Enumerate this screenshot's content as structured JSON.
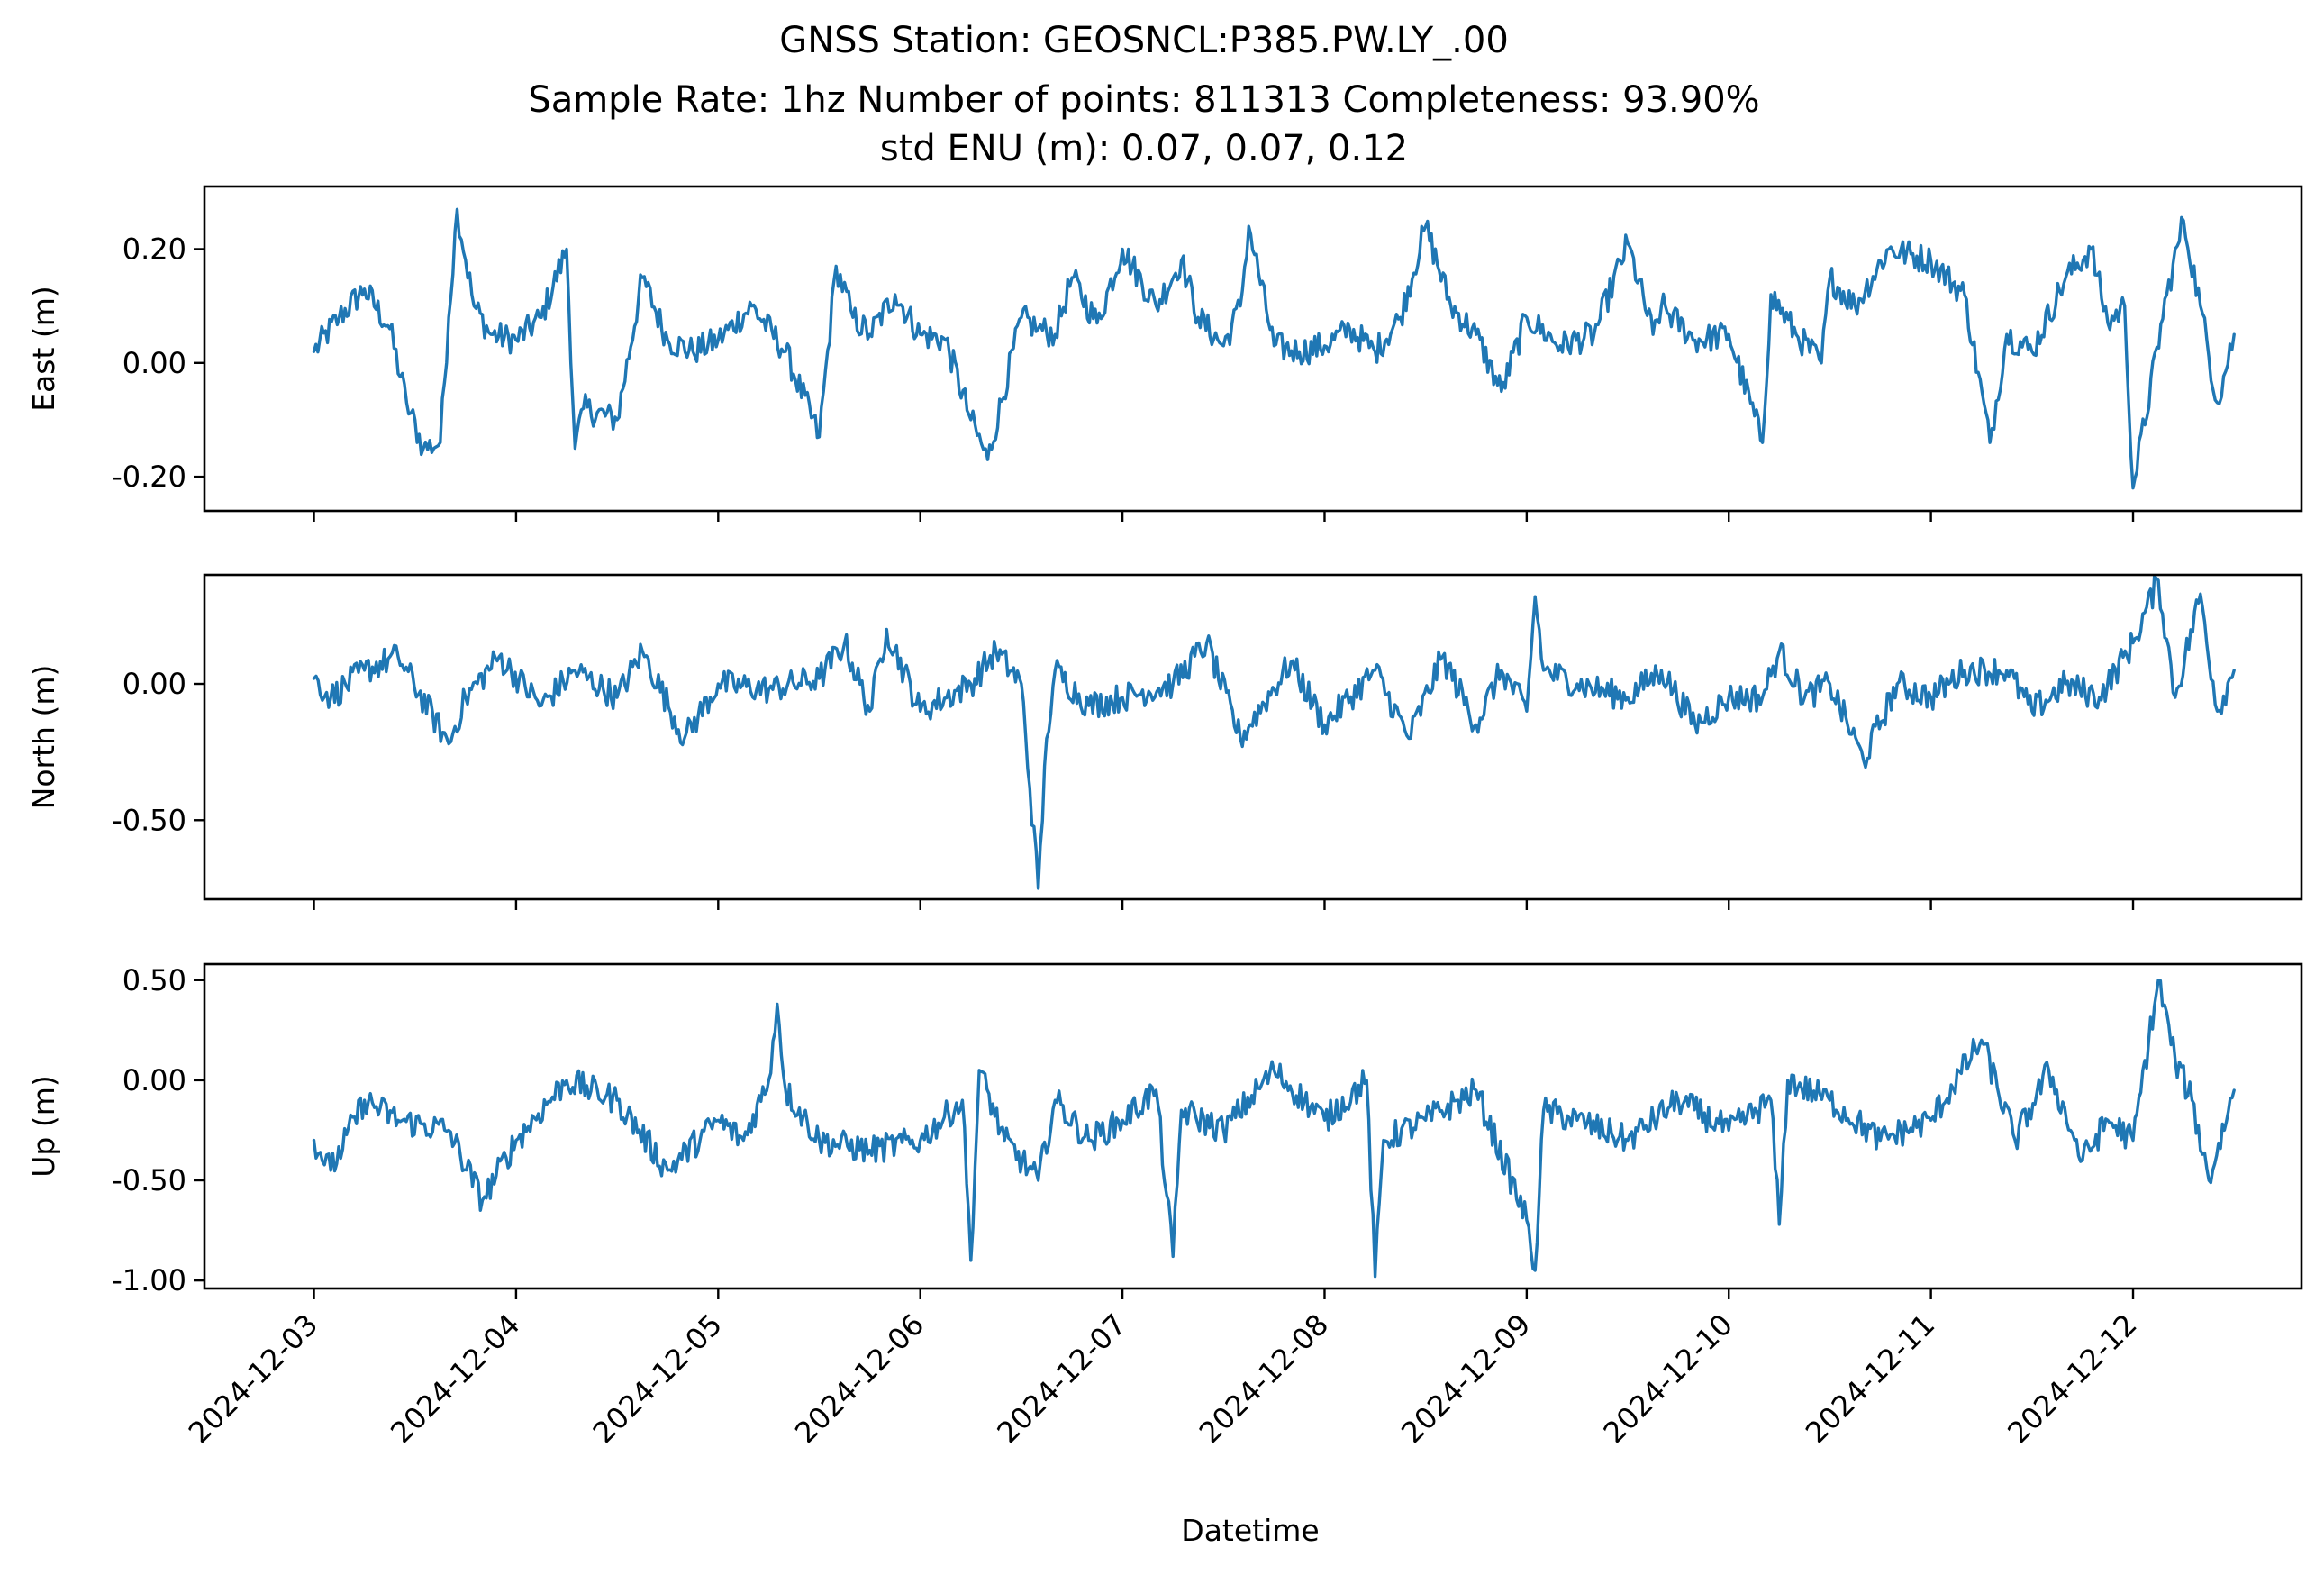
{
  "figure": {
    "title_lines": [
      "GNSS Station: GEOSNCL:P385.PW.LY_.00",
      "Sample Rate: 1hz   Number of points: 811313    Completeness:  93.90%",
      "std ENU (m):  0.07, 0.07, 0.12"
    ],
    "xlabel": "Datetime",
    "line_color": "#1f77b4"
  },
  "chart_data": [
    {
      "type": "line",
      "name": "east",
      "ylabel": "East (m)",
      "xlim": [
        "2024-12-02T11:00",
        "2024-12-12T20:00"
      ],
      "ylim": [
        -0.26,
        0.31
      ],
      "yticks": [
        0.2,
        0.0,
        -0.2
      ],
      "ytick_labels": [
        "0.20",
        "0.00",
        "-0.20"
      ],
      "x_tick_labels": [],
      "grid": false,
      "x": [
        "2024-12-03T00:00",
        "2024-12-03T03:00",
        "2024-12-03T06:00",
        "2024-12-03T09:00",
        "2024-12-03T11:00",
        "2024-12-03T13:00",
        "2024-12-03T15:00",
        "2024-12-03T16:00",
        "2024-12-03T17:00",
        "2024-12-03T19:00",
        "2024-12-03T21:00",
        "2024-12-04T00:00",
        "2024-12-04T03:00",
        "2024-12-04T06:00",
        "2024-12-04T07:00",
        "2024-12-04T08:00",
        "2024-12-04T12:00",
        "2024-12-04T15:00",
        "2024-12-04T18:00",
        "2024-12-04T21:00",
        "2024-12-05T00:00",
        "2024-12-05T04:00",
        "2024-12-05T08:00",
        "2024-12-05T12:00",
        "2024-12-05T14:00",
        "2024-12-05T16:00",
        "2024-12-05T18:00",
        "2024-12-05T21:00",
        "2024-12-06T00:00",
        "2024-12-06T03:00",
        "2024-12-06T06:00",
        "2024-12-06T08:00",
        "2024-12-06T12:00",
        "2024-12-06T14:00",
        "2024-12-06T16:00",
        "2024-12-06T18:00",
        "2024-12-06T21:00",
        "2024-12-07T00:00",
        "2024-12-07T04:00",
        "2024-12-07T07:00",
        "2024-12-07T09:00",
        "2024-12-07T12:00",
        "2024-12-07T14:00",
        "2024-12-07T15:00",
        "2024-12-07T18:00",
        "2024-12-07T21:00",
        "2024-12-08T00:00",
        "2024-12-08T03:00",
        "2024-12-08T06:00",
        "2024-12-08T09:00",
        "2024-12-08T12:00",
        "2024-12-08T15:00",
        "2024-12-08T18:00",
        "2024-12-08T21:00",
        "2024-12-09T00:00",
        "2024-12-09T04:00",
        "2024-12-09T08:00",
        "2024-12-09T12:00",
        "2024-12-09T15:00",
        "2024-12-09T16:00",
        "2024-12-09T20:00",
        "2024-12-10T00:00",
        "2024-12-10T04:00",
        "2024-12-10T05:00",
        "2024-12-10T08:00",
        "2024-12-10T11:00",
        "2024-12-10T12:00",
        "2024-12-10T15:00",
        "2024-12-10T19:00",
        "2024-12-11T00:00",
        "2024-12-11T04:00",
        "2024-12-11T07:00",
        "2024-12-11T09:00",
        "2024-12-11T12:00",
        "2024-12-11T16:00",
        "2024-12-11T19:00",
        "2024-12-11T21:00",
        "2024-12-11T23:00",
        "2024-12-12T00:00",
        "2024-12-12T04:00",
        "2024-12-12T06:00",
        "2024-12-12T08:00",
        "2024-12-12T10:00",
        "2024-12-12T12:00"
      ],
      "y": [
        0.02,
        0.08,
        0.13,
        0.06,
        -0.07,
        -0.15,
        -0.14,
        0.08,
        0.27,
        0.1,
        0.05,
        0.04,
        0.08,
        0.2,
        -0.15,
        -0.08,
        -0.1,
        0.15,
        0.04,
        0.02,
        0.04,
        0.1,
        0.02,
        -0.13,
        0.17,
        0.08,
        0.05,
        0.12,
        0.05,
        0.04,
        -0.1,
        -0.17,
        0.08,
        0.06,
        0.05,
        0.15,
        0.07,
        0.2,
        0.1,
        0.18,
        0.08,
        0.03,
        0.1,
        0.24,
        0.03,
        0.02,
        0.03,
        0.06,
        0.02,
        0.08,
        0.24,
        0.1,
        0.05,
        -0.05,
        0.08,
        0.03,
        0.05,
        0.21,
        0.05,
        0.1,
        0.04,
        0.05,
        -0.14,
        0.12,
        0.05,
        0.0,
        0.15,
        0.1,
        0.2,
        0.18,
        0.12,
        -0.14,
        0.05,
        0.02,
        0.15,
        0.2,
        0.07,
        0.1,
        -0.22,
        0.12,
        0.25,
        0.1,
        -0.07,
        0.05
      ]
    },
    {
      "type": "line",
      "name": "north",
      "ylabel": "North (m)",
      "xlim": [
        "2024-12-02T11:00",
        "2024-12-12T20:00"
      ],
      "ylim": [
        -0.79,
        0.4
      ],
      "yticks": [
        0.0,
        -0.5
      ],
      "ytick_labels": [
        "0.00",
        "-0.50"
      ],
      "x_tick_labels": [],
      "grid": false,
      "x": [
        "2024-12-03T00:00",
        "2024-12-03T02:00",
        "2024-12-03T06:00",
        "2024-12-03T10:00",
        "2024-12-03T16:00",
        "2024-12-03T18:00",
        "2024-12-03T22:00",
        "2024-12-04T03:00",
        "2024-12-04T07:00",
        "2024-12-04T12:00",
        "2024-12-04T15:00",
        "2024-12-04T20:00",
        "2024-12-05T00:00",
        "2024-12-05T06:00",
        "2024-12-05T12:00",
        "2024-12-05T15:00",
        "2024-12-05T18:00",
        "2024-12-05T20:00",
        "2024-12-06T00:00",
        "2024-12-06T06:00",
        "2024-12-06T09:00",
        "2024-12-06T12:00",
        "2024-12-06T14:00",
        "2024-12-06T15:00",
        "2024-12-06T16:00",
        "2024-12-06T20:00",
        "2024-12-07T00:00",
        "2024-12-07T06:00",
        "2024-12-07T10:00",
        "2024-12-07T14:00",
        "2024-12-07T20:00",
        "2024-12-08T00:00",
        "2024-12-08T06:00",
        "2024-12-08T10:00",
        "2024-12-08T14:00",
        "2024-12-08T18:00",
        "2024-12-08T21:00",
        "2024-12-09T00:00",
        "2024-12-09T01:00",
        "2024-12-09T02:00",
        "2024-12-09T06:00",
        "2024-12-09T12:00",
        "2024-12-09T16:00",
        "2024-12-09T20:00",
        "2024-12-10T00:00",
        "2024-12-10T04:00",
        "2024-12-10T06:00",
        "2024-12-10T09:00",
        "2024-12-10T12:00",
        "2024-12-10T16:00",
        "2024-12-10T20:00",
        "2024-12-11T00:00",
        "2024-12-11T04:00",
        "2024-12-11T09:00",
        "2024-12-11T12:00",
        "2024-12-11T16:00",
        "2024-12-11T20:00",
        "2024-12-12T00:00",
        "2024-12-12T03:00",
        "2024-12-12T05:00",
        "2024-12-12T08:00",
        "2024-12-12T10:00",
        "2024-12-12T12:00"
      ],
      "y": [
        0.02,
        -0.05,
        0.05,
        0.1,
        -0.22,
        -0.05,
        0.1,
        -0.08,
        0.05,
        -0.05,
        0.12,
        -0.2,
        0.0,
        -0.02,
        0.02,
        0.15,
        -0.1,
        0.2,
        -0.1,
        0.0,
        0.12,
        0.0,
        -0.75,
        -0.2,
        0.05,
        -0.08,
        -0.05,
        0.0,
        0.15,
        -0.2,
        0.08,
        -0.15,
        0.05,
        -0.2,
        0.1,
        -0.15,
        0.05,
        -0.1,
        0.32,
        0.05,
        0.0,
        -0.05,
        0.05,
        -0.15,
        -0.05,
        -0.05,
        0.12,
        -0.05,
        0.0,
        -0.28,
        0.0,
        -0.05,
        0.05,
        0.05,
        -0.1,
        0.0,
        -0.05,
        0.15,
        0.38,
        -0.05,
        0.33,
        -0.1,
        0.05
      ]
    },
    {
      "type": "line",
      "name": "up",
      "ylabel": "Up (m)",
      "xlim": [
        "2024-12-02T11:00",
        "2024-12-12T20:00"
      ],
      "ylim": [
        -1.04,
        0.58
      ],
      "yticks": [
        0.5,
        0.0,
        -0.5,
        -1.0
      ],
      "ytick_labels": [
        "0.50",
        "0.00",
        "-0.50",
        "-1.00"
      ],
      "x_tick_labels": [
        "2024-12-03",
        "2024-12-04",
        "2024-12-05",
        "2024-12-06",
        "2024-12-07",
        "2024-12-08",
        "2024-12-09",
        "2024-12-10",
        "2024-12-11",
        "2024-12-12"
      ],
      "grid": false,
      "x": [
        "2024-12-03T00:00",
        "2024-12-03T02:00",
        "2024-12-03T06:00",
        "2024-12-03T10:00",
        "2024-12-03T16:00",
        "2024-12-03T20:00",
        "2024-12-04T00:00",
        "2024-12-04T06:00",
        "2024-12-04T12:00",
        "2024-12-04T18:00",
        "2024-12-05T00:00",
        "2024-12-05T03:00",
        "2024-12-05T06:00",
        "2024-12-05T07:00",
        "2024-12-05T08:00",
        "2024-12-05T12:00",
        "2024-12-05T18:00",
        "2024-12-06T00:00",
        "2024-12-06T05:00",
        "2024-12-06T06:00",
        "2024-12-06T07:00",
        "2024-12-06T10:00",
        "2024-12-06T14:00",
        "2024-12-06T16:00",
        "2024-12-06T20:00",
        "2024-12-07T00:00",
        "2024-12-07T04:00",
        "2024-12-07T06:00",
        "2024-12-07T07:00",
        "2024-12-07T12:00",
        "2024-12-07T18:00",
        "2024-12-08T00:00",
        "2024-12-08T05:00",
        "2024-12-08T06:00",
        "2024-12-08T07:00",
        "2024-12-08T12:00",
        "2024-12-08T18:00",
        "2024-12-09T00:00",
        "2024-12-09T01:00",
        "2024-12-09T02:00",
        "2024-12-09T06:00",
        "2024-12-09T12:00",
        "2024-12-09T18:00",
        "2024-12-10T00:00",
        "2024-12-10T05:00",
        "2024-12-10T06:00",
        "2024-12-10T07:00",
        "2024-12-10T12:00",
        "2024-12-10T18:00",
        "2024-12-11T00:00",
        "2024-12-11T06:00",
        "2024-12-11T10:00",
        "2024-12-11T14:00",
        "2024-12-11T18:00",
        "2024-12-11T21:00",
        "2024-12-12T00:00",
        "2024-12-12T03:00",
        "2024-12-12T05:00",
        "2024-12-12T07:00",
        "2024-12-12T09:00",
        "2024-12-12T12:00"
      ],
      "y": [
        -0.3,
        -0.45,
        -0.1,
        -0.2,
        -0.25,
        -0.6,
        -0.3,
        0.0,
        -0.1,
        -0.45,
        -0.2,
        -0.3,
        0.0,
        0.38,
        -0.05,
        -0.3,
        -0.35,
        -0.3,
        -0.1,
        -0.9,
        0.05,
        -0.3,
        -0.5,
        -0.1,
        -0.3,
        -0.2,
        -0.05,
        -0.88,
        -0.15,
        -0.25,
        0.05,
        -0.2,
        0.0,
        -0.98,
        -0.3,
        -0.2,
        -0.05,
        -0.7,
        -0.95,
        -0.15,
        -0.2,
        -0.3,
        -0.1,
        -0.25,
        -0.1,
        -0.72,
        0.0,
        -0.1,
        -0.3,
        -0.2,
        0.2,
        -0.3,
        0.05,
        -0.4,
        -0.2,
        -0.3,
        0.5,
        0.1,
        -0.1,
        -0.5,
        -0.05
      ]
    }
  ]
}
